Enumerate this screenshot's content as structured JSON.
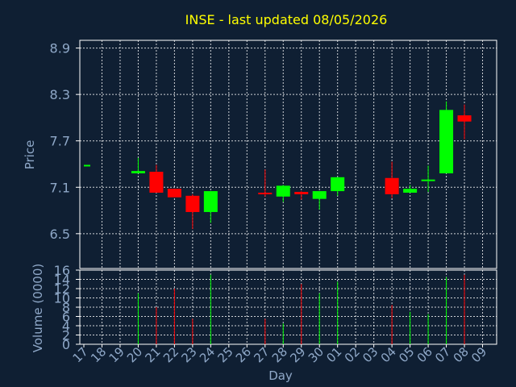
{
  "chart_data": {
    "type": "candlestick",
    "title": "INSE - last updated 08/05/2026",
    "xlabel": "Day",
    "ylabel_price": "Price",
    "ylabel_volume": "Volume (0000)",
    "x_labels": [
      "17",
      "18",
      "19",
      "20",
      "21",
      "22",
      "23",
      "24",
      "25",
      "26",
      "27",
      "28",
      "29",
      "30",
      "01",
      "02",
      "03",
      "04",
      "05",
      "06",
      "07",
      "08",
      "09"
    ],
    "price_ticks": [
      6.5,
      7.1,
      7.7,
      8.3,
      8.9
    ],
    "price_ylim": [
      6.05,
      9.0
    ],
    "volume_ticks": [
      0,
      2,
      4,
      6,
      8,
      10,
      12,
      14,
      16
    ],
    "volume_ylim": [
      0,
      16
    ],
    "grid": true,
    "up_color": "#00ff00",
    "down_color": "#ff0000",
    "candles": [
      {
        "i": 0,
        "open": 7.39,
        "close": 7.39,
        "high": 7.39,
        "low": 7.39,
        "volume": 0
      },
      {
        "i": 3,
        "open": 7.28,
        "close": 7.31,
        "high": 7.48,
        "low": 7.28,
        "volume": 11
      },
      {
        "i": 4,
        "open": 7.3,
        "close": 7.03,
        "high": 7.39,
        "low": 7.03,
        "volume": 8
      },
      {
        "i": 5,
        "open": 7.08,
        "close": 6.97,
        "high": 7.08,
        "low": 6.97,
        "volume": 12
      },
      {
        "i": 6,
        "open": 6.99,
        "close": 6.78,
        "high": 7.01,
        "low": 6.56,
        "volume": 5.5
      },
      {
        "i": 7,
        "open": 6.78,
        "close": 7.05,
        "high": 7.05,
        "low": 6.64,
        "volume": 15
      },
      {
        "i": 10,
        "open": 7.03,
        "close": 7.01,
        "high": 7.33,
        "low": 6.98,
        "volume": 5.5
      },
      {
        "i": 11,
        "open": 6.98,
        "close": 7.12,
        "high": 7.13,
        "low": 6.91,
        "volume": 4.5
      },
      {
        "i": 12,
        "open": 7.04,
        "close": 7.01,
        "high": 7.05,
        "low": 6.94,
        "volume": 13
      },
      {
        "i": 13,
        "open": 6.95,
        "close": 7.05,
        "high": 7.05,
        "low": 6.81,
        "volume": 11
      },
      {
        "i": 14,
        "open": 7.05,
        "close": 7.23,
        "high": 7.23,
        "low": 6.99,
        "volume": 13.5
      },
      {
        "i": 17,
        "open": 7.22,
        "close": 7.01,
        "high": 7.43,
        "low": 6.96,
        "volume": 8.5
      },
      {
        "i": 18,
        "open": 7.03,
        "close": 7.08,
        "high": 7.13,
        "low": 7.03,
        "volume": 7
      },
      {
        "i": 19,
        "open": 7.19,
        "close": 7.2,
        "high": 7.38,
        "low": 7.04,
        "volume": 6.5
      },
      {
        "i": 20,
        "open": 7.28,
        "close": 8.1,
        "high": 8.21,
        "low": 7.28,
        "volume": 14.5
      },
      {
        "i": 21,
        "open": 8.03,
        "close": 7.95,
        "high": 8.17,
        "low": 7.72,
        "volume": 15
      }
    ]
  }
}
